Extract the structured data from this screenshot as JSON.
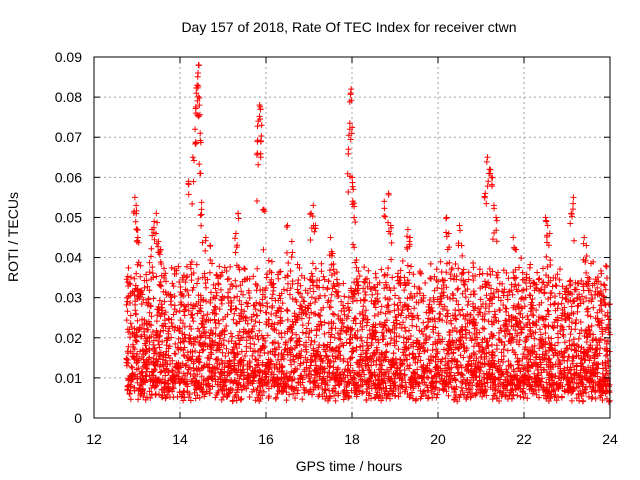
{
  "chart_data": {
    "type": "scatter",
    "title": "Day 157 of 2018, Rate Of TEC Index for receiver ctwn",
    "xlabel": "GPS time / hours",
    "ylabel": "ROTI / TECUs",
    "xlim": [
      12,
      24
    ],
    "ylim": [
      0,
      0.09
    ],
    "xticks": [
      12,
      14,
      16,
      18,
      20,
      22,
      24
    ],
    "xtick_labels": [
      "12",
      "14",
      "16",
      "18",
      "20",
      "22",
      "24"
    ],
    "yticks": [
      0,
      0.01,
      0.02,
      0.03,
      0.04,
      0.05,
      0.06,
      0.07,
      0.08,
      0.09
    ],
    "ytick_labels": [
      "0",
      "0.01",
      "0.02",
      "0.03",
      "0.04",
      "0.05",
      "0.06",
      "0.07",
      "0.08",
      "0.09"
    ],
    "grid": true,
    "marker": "+",
    "color": "#ff0000",
    "data_start_hour": 12.75,
    "data_end_hour": 24,
    "series": [
      {
        "name": "ROTI",
        "note": "dense point cloud; representative points including visible peaks",
        "points": [
          [
            12.95,
            0.055
          ],
          [
            12.98,
            0.053
          ],
          [
            13.0,
            0.047
          ],
          [
            13.02,
            0.045
          ],
          [
            13.35,
            0.047
          ],
          [
            13.4,
            0.049
          ],
          [
            13.45,
            0.051
          ],
          [
            13.5,
            0.044
          ],
          [
            13.55,
            0.042
          ],
          [
            14.2,
            0.059
          ],
          [
            14.3,
            0.065
          ],
          [
            14.35,
            0.072
          ],
          [
            14.38,
            0.081
          ],
          [
            14.4,
            0.083
          ],
          [
            14.42,
            0.086
          ],
          [
            14.43,
            0.088
          ],
          [
            14.45,
            0.078
          ],
          [
            14.47,
            0.071
          ],
          [
            14.48,
            0.061
          ],
          [
            14.5,
            0.052
          ],
          [
            14.6,
            0.045
          ],
          [
            14.7,
            0.043
          ],
          [
            15.3,
            0.046
          ],
          [
            15.35,
            0.051
          ],
          [
            15.8,
            0.066
          ],
          [
            15.82,
            0.074
          ],
          [
            15.85,
            0.078
          ],
          [
            15.87,
            0.077
          ],
          [
            15.9,
            0.073
          ],
          [
            15.95,
            0.052
          ],
          [
            16.5,
            0.048
          ],
          [
            16.6,
            0.044
          ],
          [
            17.05,
            0.051
          ],
          [
            17.1,
            0.053
          ],
          [
            17.15,
            0.048
          ],
          [
            17.5,
            0.045
          ],
          [
            17.55,
            0.041
          ],
          [
            17.92,
            0.067
          ],
          [
            17.95,
            0.072
          ],
          [
            17.97,
            0.081
          ],
          [
            17.98,
            0.082
          ],
          [
            18.0,
            0.06
          ],
          [
            18.03,
            0.057
          ],
          [
            18.05,
            0.05
          ],
          [
            18.75,
            0.054
          ],
          [
            18.85,
            0.056
          ],
          [
            18.9,
            0.048
          ],
          [
            19.3,
            0.047
          ],
          [
            19.35,
            0.045
          ],
          [
            20.2,
            0.05
          ],
          [
            20.25,
            0.046
          ],
          [
            20.5,
            0.048
          ],
          [
            20.55,
            0.043
          ],
          [
            21.1,
            0.056
          ],
          [
            21.15,
            0.065
          ],
          [
            21.2,
            0.062
          ],
          [
            21.25,
            0.06
          ],
          [
            21.3,
            0.053
          ],
          [
            21.35,
            0.05
          ],
          [
            21.75,
            0.045
          ],
          [
            21.8,
            0.042
          ],
          [
            22.5,
            0.05
          ],
          [
            22.55,
            0.048
          ],
          [
            22.6,
            0.046
          ],
          [
            23.1,
            0.051
          ],
          [
            23.15,
            0.055
          ],
          [
            23.4,
            0.045
          ],
          [
            23.45,
            0.043
          ],
          [
            23.8,
            0.036
          ],
          [
            23.9,
            0.032
          ]
        ]
      }
    ]
  }
}
